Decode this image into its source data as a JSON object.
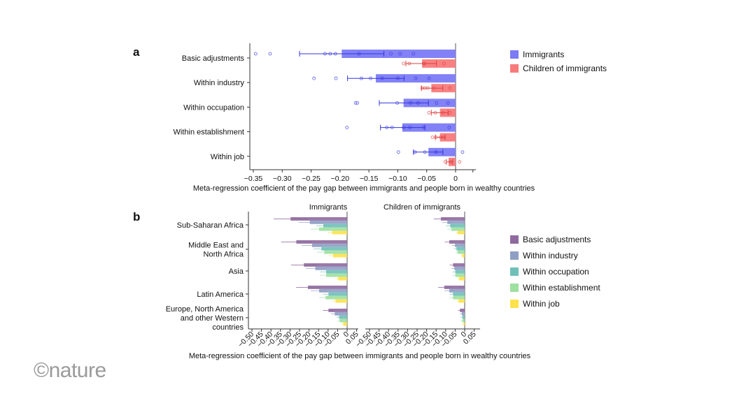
{
  "logo": "©nature",
  "chart_data": [
    {
      "panel": "a",
      "type": "bar",
      "orientation": "horizontal",
      "xlabel": "Meta-regression coefficient of the pay gap between immigrants and people born in wealthy countries",
      "xlim": [
        -0.36,
        0.03
      ],
      "xticks": [
        -0.35,
        -0.3,
        -0.25,
        -0.2,
        -0.15,
        -0.1,
        -0.05,
        0
      ],
      "xtick_labels": [
        "−0.35",
        "−0.30",
        "−0.25",
        "−0.20",
        "−0.15",
        "−0.10",
        "−0.05",
        "0"
      ],
      "categories": [
        "Basic adjustments",
        "Within industry",
        "Within occupation",
        "Within establishment",
        "Within job"
      ],
      "legend_position": "right",
      "series": [
        {
          "name": "Immigrants",
          "color": "#7b7bf6",
          "values": [
            -0.197,
            -0.138,
            -0.09,
            -0.092,
            -0.047
          ],
          "ci": [
            [
              -0.27,
              -0.124
            ],
            [
              -0.187,
              -0.089
            ],
            [
              -0.132,
              -0.047
            ],
            [
              -0.13,
              -0.053
            ],
            [
              -0.073,
              -0.022
            ]
          ],
          "points": [
            [
              -0.346,
              -0.321,
              -0.226,
              -0.217,
              -0.208,
              -0.167,
              -0.112,
              -0.096,
              -0.073
            ],
            [
              -0.245,
              -0.207,
              -0.163,
              -0.147,
              -0.127,
              -0.1,
              -0.069,
              -0.046
            ],
            [
              -0.173,
              -0.17,
              -0.101,
              -0.078,
              -0.065,
              -0.033,
              -0.013
            ],
            [
              -0.188,
              -0.119,
              -0.11,
              -0.09,
              -0.079,
              -0.055,
              -0.011
            ],
            [
              -0.099,
              -0.07,
              -0.053,
              -0.034,
              0.012
            ]
          ]
        },
        {
          "name": "Children of immigrants",
          "color": "#f87b7b",
          "values": [
            -0.058,
            -0.042,
            -0.027,
            -0.027,
            -0.012
          ],
          "ci": [
            [
              -0.086,
              -0.033
            ],
            [
              -0.059,
              -0.022
            ],
            [
              -0.042,
              -0.013
            ],
            [
              -0.035,
              -0.018
            ],
            [
              -0.016,
              -0.005
            ]
          ],
          "points": [
            [
              -0.09,
              -0.08,
              -0.055,
              -0.054,
              -0.02
            ],
            [
              -0.058,
              -0.053,
              -0.048,
              -0.038,
              -0.01
            ],
            [
              -0.046,
              -0.035,
              -0.022,
              -0.01
            ],
            [
              -0.04,
              -0.034,
              -0.026,
              -0.021
            ],
            [
              -0.018,
              -0.009,
              0.007
            ]
          ]
        }
      ]
    },
    {
      "panel": "b",
      "type": "bar",
      "orientation": "horizontal",
      "xlabel": "Meta-regression coefficient of the pay gap between immigrants and people born in wealthy countries",
      "xlim": [
        -0.52,
        0.07
      ],
      "xticks": [
        -0.5,
        -0.45,
        -0.4,
        -0.35,
        -0.3,
        -0.25,
        -0.2,
        -0.15,
        -0.1,
        -0.05,
        0,
        0.05
      ],
      "xtick_labels": [
        "−0.50",
        "−0.45",
        "−0.40",
        "−0.35",
        "−0.30",
        "−0.25",
        "−0.20",
        "−0.15",
        "−0.10",
        "−0.05",
        "0",
        "0.05"
      ],
      "categories": [
        "Sub-Saharan Africa",
        "Middle East and\nNorth Africa",
        "Asia",
        "Latin America",
        "Europe, North America\nand other Western\ncountries"
      ],
      "legend_position": "right",
      "series_names": [
        "Basic adjustments",
        "Within industry",
        "Within occupation",
        "Within establishment",
        "Within job"
      ],
      "series_colors": [
        "#8f6a9e",
        "#8f9fc4",
        "#6fc0b8",
        "#9ee0a0",
        "#fde24a"
      ],
      "facets": [
        {
          "title": "Immigrants",
          "values": [
            [
              -0.297,
              -0.196,
              -0.125,
              -0.147,
              -0.078
            ],
            [
              -0.267,
              -0.184,
              -0.135,
              -0.12,
              -0.074
            ],
            [
              -0.227,
              -0.167,
              -0.11,
              -0.11,
              -0.047
            ],
            [
              -0.206,
              -0.147,
              -0.098,
              -0.113,
              -0.061
            ],
            [
              -0.098,
              -0.065,
              -0.042,
              -0.039,
              -0.02
            ]
          ]
        },
        {
          "title": "Children of immigrants",
          "values": [
            [
              -0.125,
              -0.091,
              -0.076,
              -0.07,
              -0.037
            ],
            [
              -0.081,
              -0.051,
              -0.043,
              -0.037,
              -0.012
            ],
            [
              -0.061,
              -0.054,
              -0.049,
              -0.049,
              -0.029
            ],
            [
              -0.107,
              -0.081,
              -0.061,
              -0.061,
              -0.032
            ],
            [
              -0.025,
              -0.015,
              -0.012,
              -0.012,
              -0.005
            ]
          ]
        }
      ]
    }
  ]
}
